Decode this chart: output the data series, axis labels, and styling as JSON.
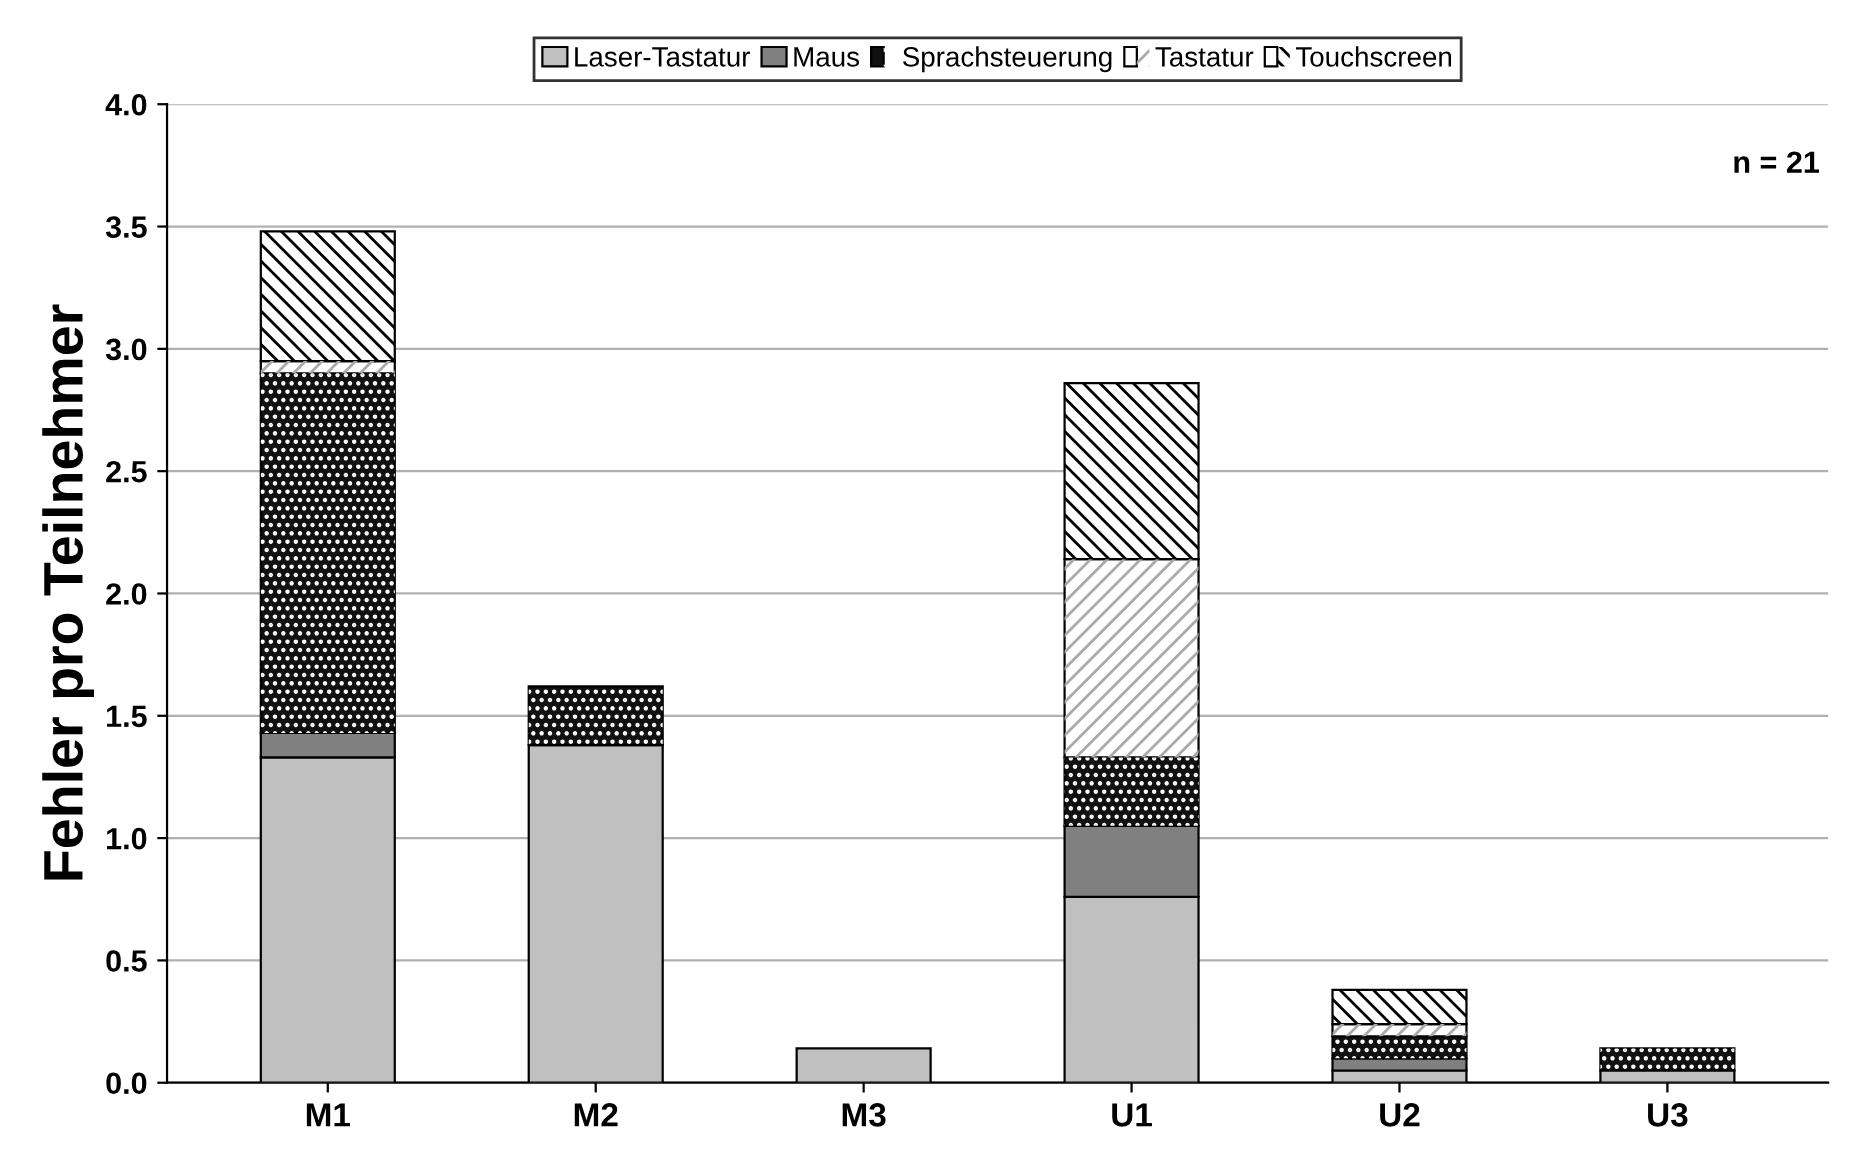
{
  "chart_data": {
    "type": "bar",
    "stacked": true,
    "ylabel": "Fehler pro Teilnehmer",
    "annotations": [
      "n = 21"
    ],
    "categories": [
      "M1",
      "M2",
      "M3",
      "U1",
      "U2",
      "U3"
    ],
    "series": [
      {
        "name": "Laser-Tastatur",
        "color": "#c0c0c0",
        "values": [
          1.33,
          1.38,
          0.14,
          0.76,
          0.05,
          0.05
        ]
      },
      {
        "name": "Maus",
        "color": "#808080",
        "values": [
          0.1,
          null,
          null,
          0.29,
          0.05,
          null
        ]
      },
      {
        "name": "Sprachsteuerung",
        "color": "#111111",
        "values": [
          1.47,
          0.24,
          null,
          0.28,
          0.09,
          0.09
        ]
      },
      {
        "name": "Tastatur",
        "color": "#ffffff",
        "values": [
          0.05,
          null,
          null,
          0.81,
          0.05,
          null
        ]
      },
      {
        "name": "Touchscreen",
        "color": "#ffffff",
        "values": [
          0.53,
          null,
          null,
          0.72,
          0.14,
          null
        ]
      }
    ],
    "ylim": [
      0,
      4
    ],
    "yticks": [
      {
        "value": 0,
        "label": "0.0"
      },
      {
        "value": 0.5,
        "label": "0.5"
      },
      {
        "value": 1,
        "label": "1.0"
      },
      {
        "value": 1.5,
        "label": "1.5"
      },
      {
        "value": 2,
        "label": "2.0"
      },
      {
        "value": 2.5,
        "label": "2.5"
      },
      {
        "value": 3,
        "label": "3.0"
      },
      {
        "value": 3.5,
        "label": "3.5"
      },
      {
        "value": 4,
        "label": "4.0"
      }
    ],
    "grid": "y",
    "legend": "top"
  }
}
